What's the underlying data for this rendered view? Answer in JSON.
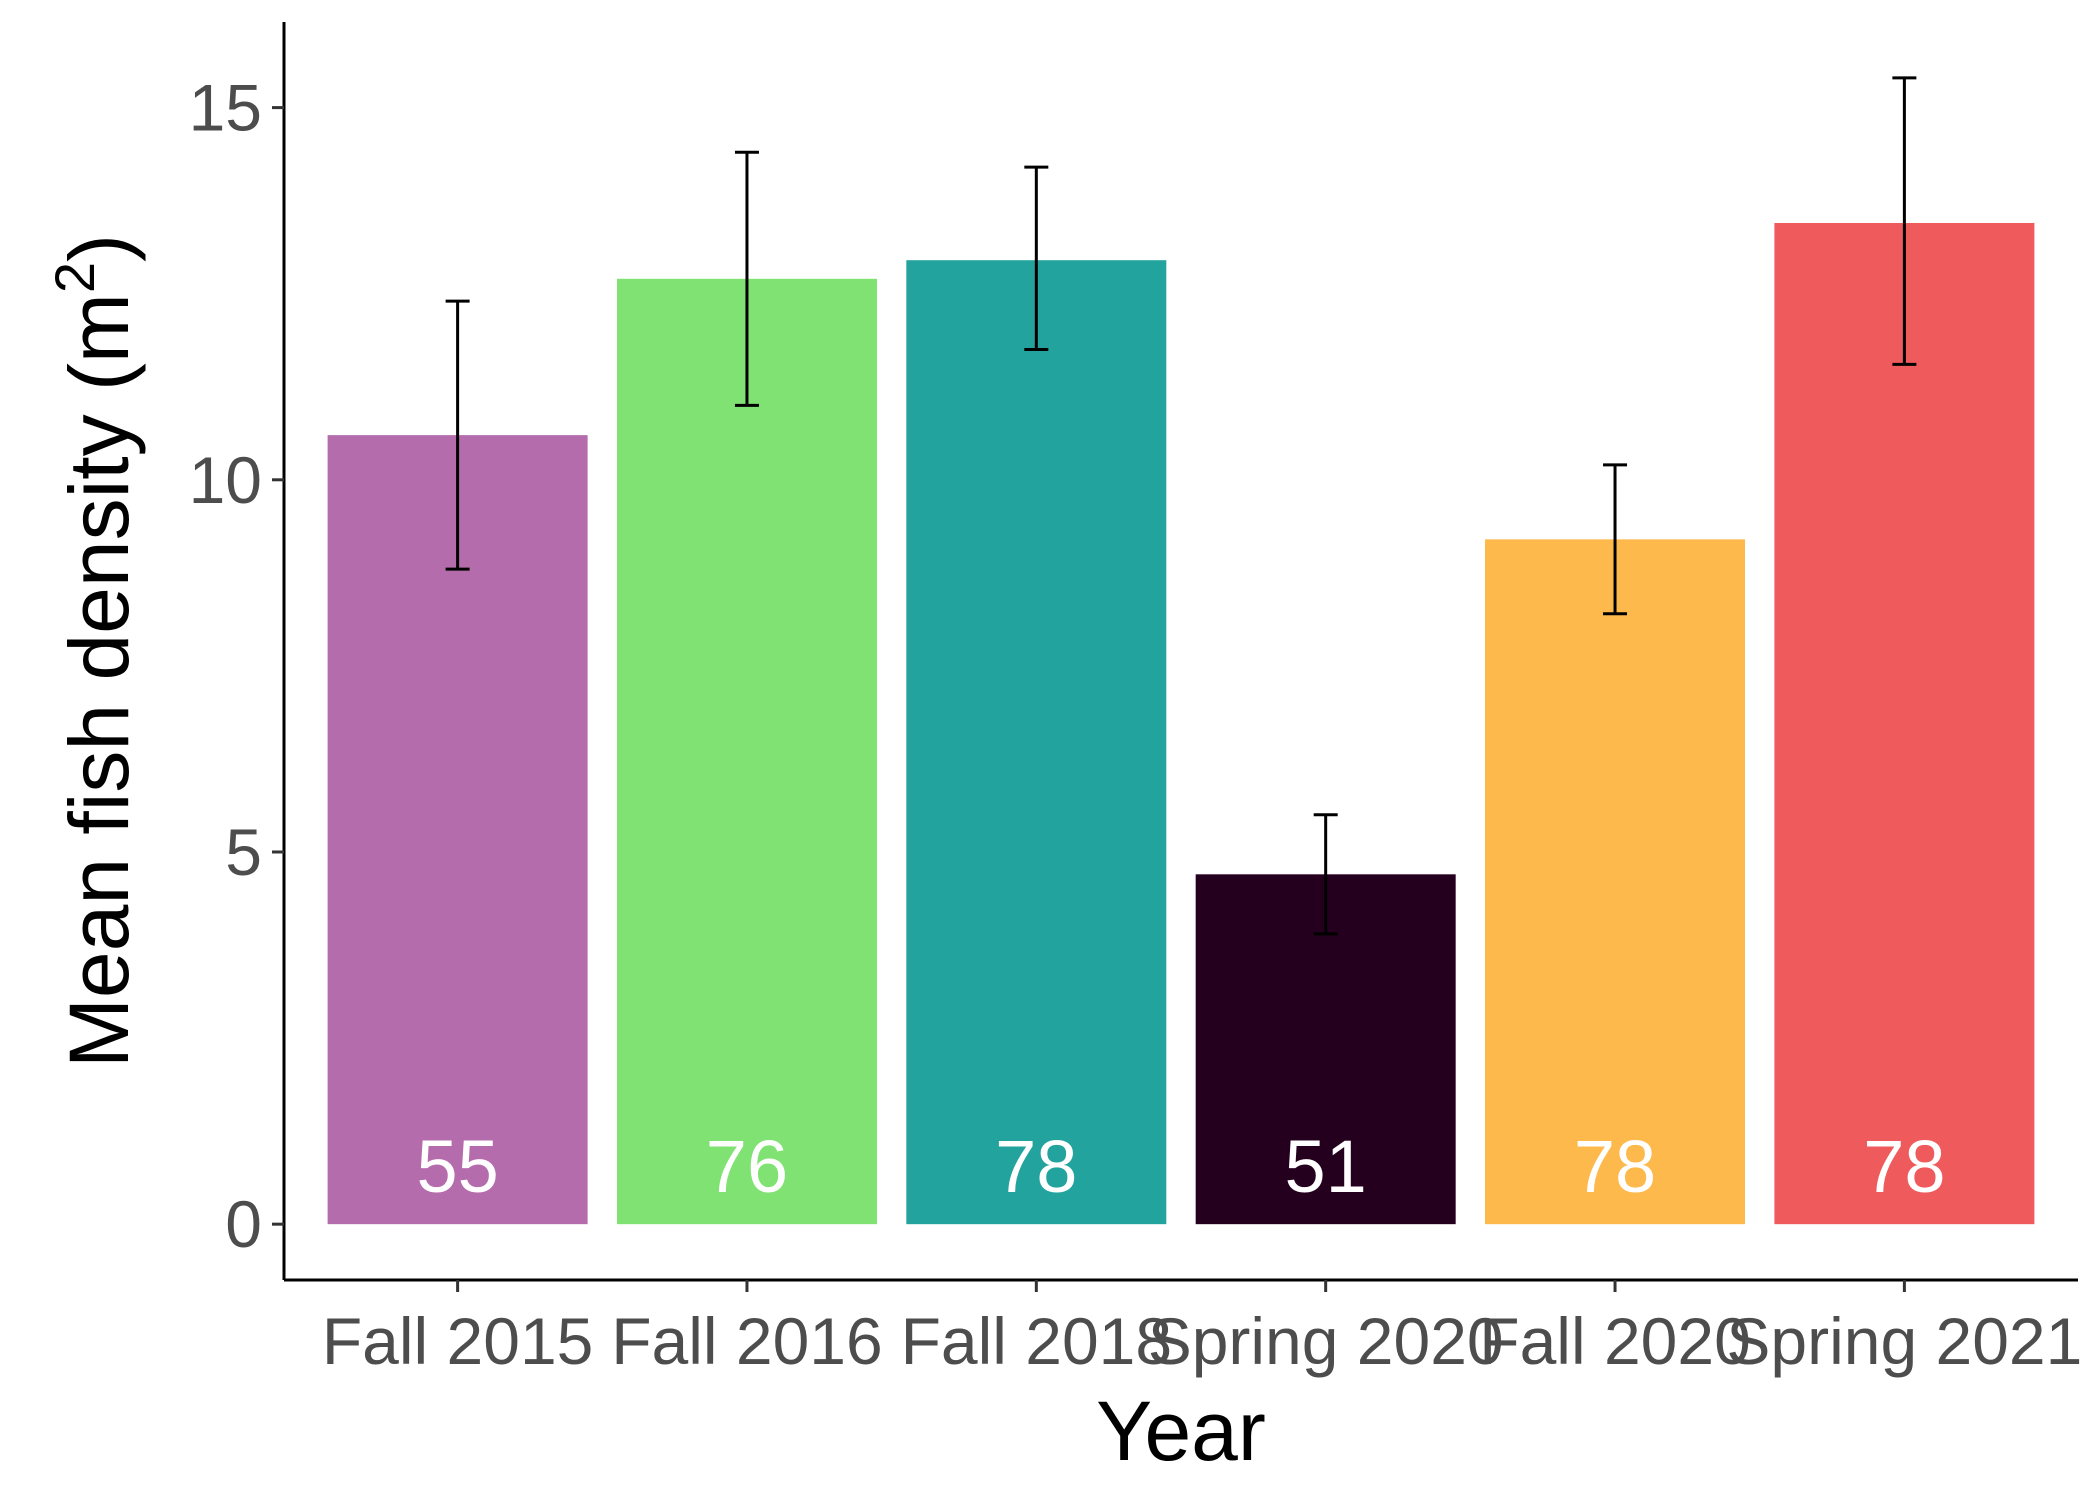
{
  "chart_data": {
    "type": "bar",
    "categories": [
      "Fall 2015",
      "Fall 2016",
      "Fall 2018",
      "Spring 2020",
      "Fall 2020",
      "Spring 2021"
    ],
    "values": [
      10.6,
      12.7,
      12.95,
      4.7,
      9.2,
      13.45
    ],
    "error_low": [
      8.8,
      11.0,
      11.75,
      3.9,
      8.2,
      11.55
    ],
    "error_high": [
      12.4,
      14.4,
      14.2,
      5.5,
      10.2,
      15.4
    ],
    "bar_labels": [
      "55",
      "76",
      "78",
      "51",
      "78",
      "78"
    ],
    "colors": [
      "#b56cad",
      "#80e273",
      "#22a39e",
      "#25001e",
      "#fdb94c",
      "#ef5b5c"
    ],
    "xlabel": "Year",
    "ylabel": "Mean fish density (m",
    "ylabel_superscript": "2",
    "ylabel_suffix": ")",
    "yticks": [
      0,
      5,
      10,
      15
    ],
    "ylim": [
      -0.75,
      16.15
    ],
    "grid": false,
    "legend": "none"
  }
}
